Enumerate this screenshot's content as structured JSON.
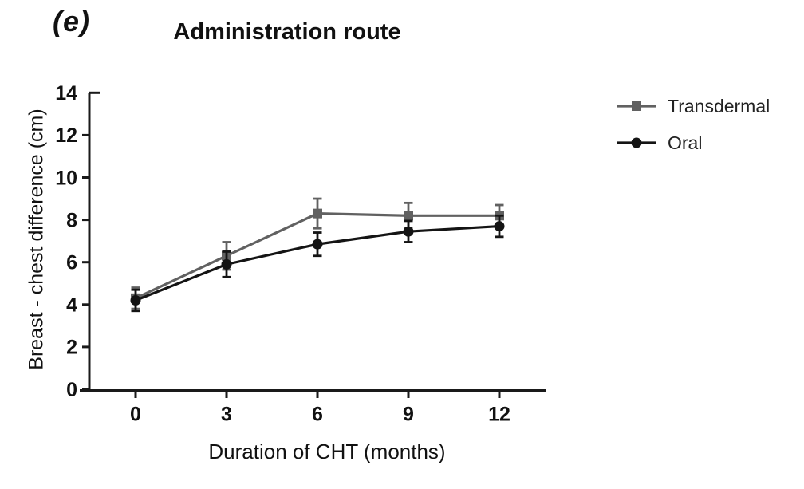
{
  "panel_label": "(e)",
  "colors": {
    "axis": "#1a1a1a",
    "text": "#111111",
    "transdermal": "#616161",
    "oral": "#141414",
    "background": "#ffffff"
  },
  "chart_data": {
    "type": "line",
    "title": "Administration route",
    "xlabel": "Duration of CHT (months)",
    "ylabel": "Breast - chest difference (cm)",
    "x": [
      0,
      3,
      6,
      9,
      12
    ],
    "x_tick_labels": [
      "0",
      "3",
      "6",
      "9",
      "12"
    ],
    "y_ticks": [
      0,
      2,
      4,
      6,
      8,
      10,
      12,
      14
    ],
    "ylim": [
      0,
      14
    ],
    "grid": false,
    "error_bars": true,
    "legend_position": "right",
    "series": [
      {
        "name": "Transdermal",
        "marker": "square",
        "color": "#616161",
        "values": [
          4.3,
          6.3,
          8.3,
          8.2,
          8.2
        ],
        "errors": [
          0.5,
          0.65,
          0.7,
          0.6,
          0.5
        ]
      },
      {
        "name": "Oral",
        "marker": "circle",
        "color": "#141414",
        "values": [
          4.2,
          5.9,
          6.85,
          7.45,
          7.7
        ],
        "errors": [
          0.5,
          0.6,
          0.55,
          0.5,
          0.5
        ]
      }
    ]
  }
}
